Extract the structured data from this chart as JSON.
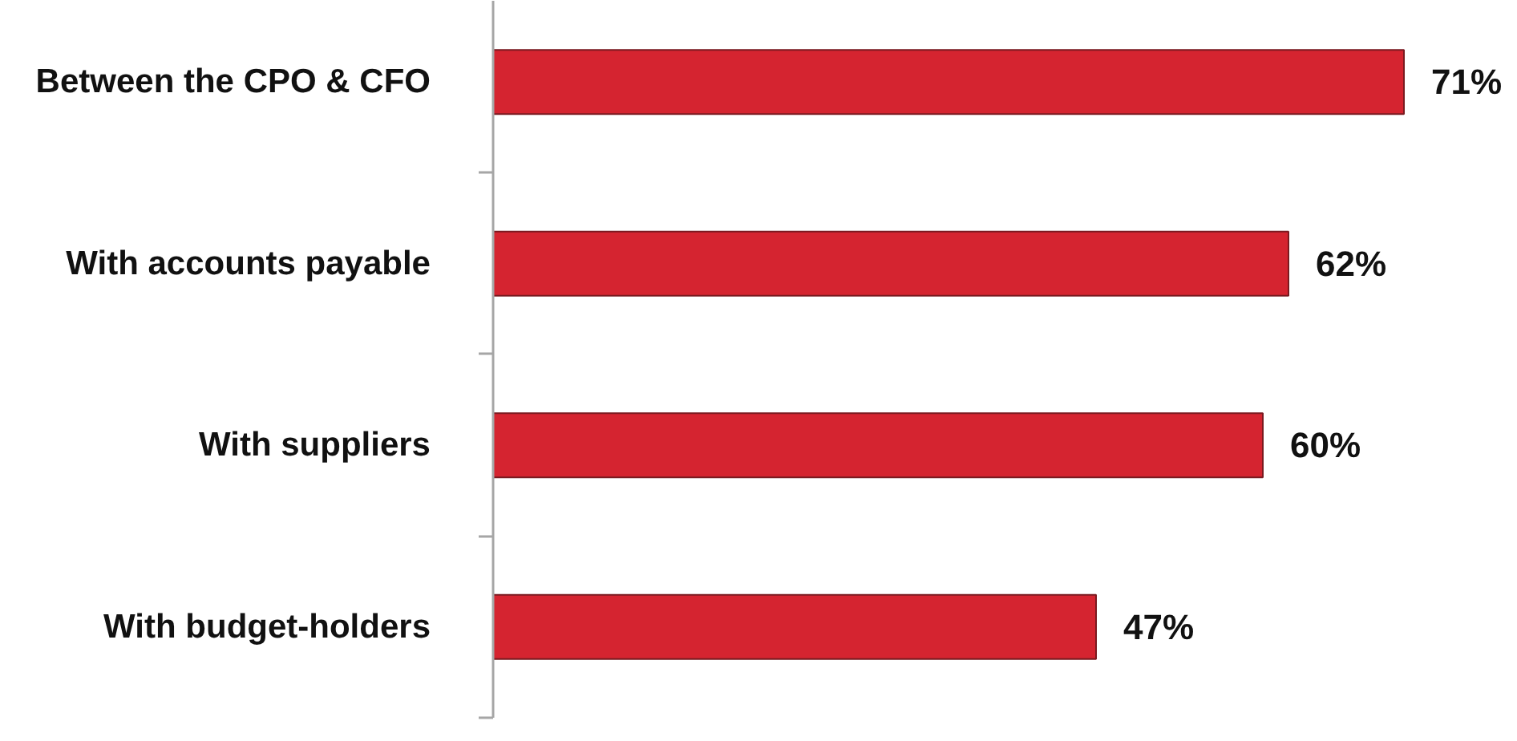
{
  "chart_data": {
    "type": "bar",
    "orientation": "horizontal",
    "categories": [
      "Between the CPO & CFO",
      "With accounts payable",
      "With suppliers",
      "With budget-holders"
    ],
    "values": [
      71,
      62,
      60,
      47
    ],
    "color": "#d52430",
    "value_labels": [
      "71%",
      "62%",
      "60%",
      "47%"
    ]
  }
}
